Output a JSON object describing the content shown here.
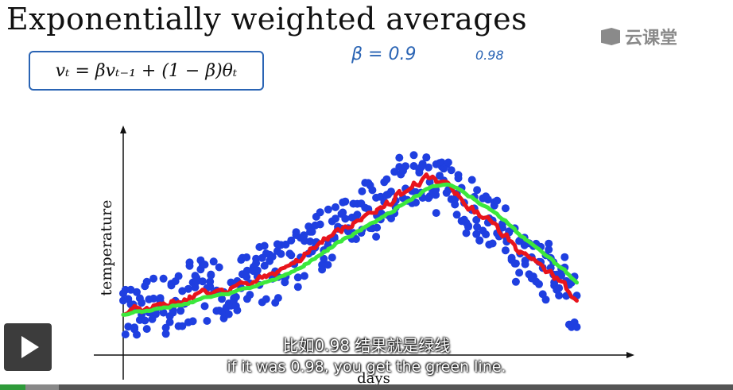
{
  "slide": {
    "title": "Exponentially weighted averages",
    "formula": "vₜ = βvₜ₋₁ + (1 − β)θₜ",
    "beta_note": "β = 0.9",
    "beta_alt": "0.98"
  },
  "logo": {
    "text": "云课堂",
    "icon": "cloud-classroom-icon"
  },
  "chart_data": {
    "type": "scatter",
    "ylabel": "temperature",
    "xlabel": "days",
    "series": [
      {
        "kind": "scatter",
        "color": "#1f3fe0"
      },
      {
        "kind": "line",
        "color": "#e8141c"
      },
      {
        "kind": "line",
        "color": "#3ce83c"
      }
    ]
  },
  "subtitles": {
    "chinese": "比如0.98 结果就是绿线",
    "english": "if it was 0.98, you get the green line."
  },
  "player": {
    "progress": 0.035,
    "buffered": 0.08,
    "play_icon": "play-icon",
    "colors": {
      "progress": "#2e9b3a",
      "buffer": "#888888",
      "track": "#555555"
    }
  }
}
